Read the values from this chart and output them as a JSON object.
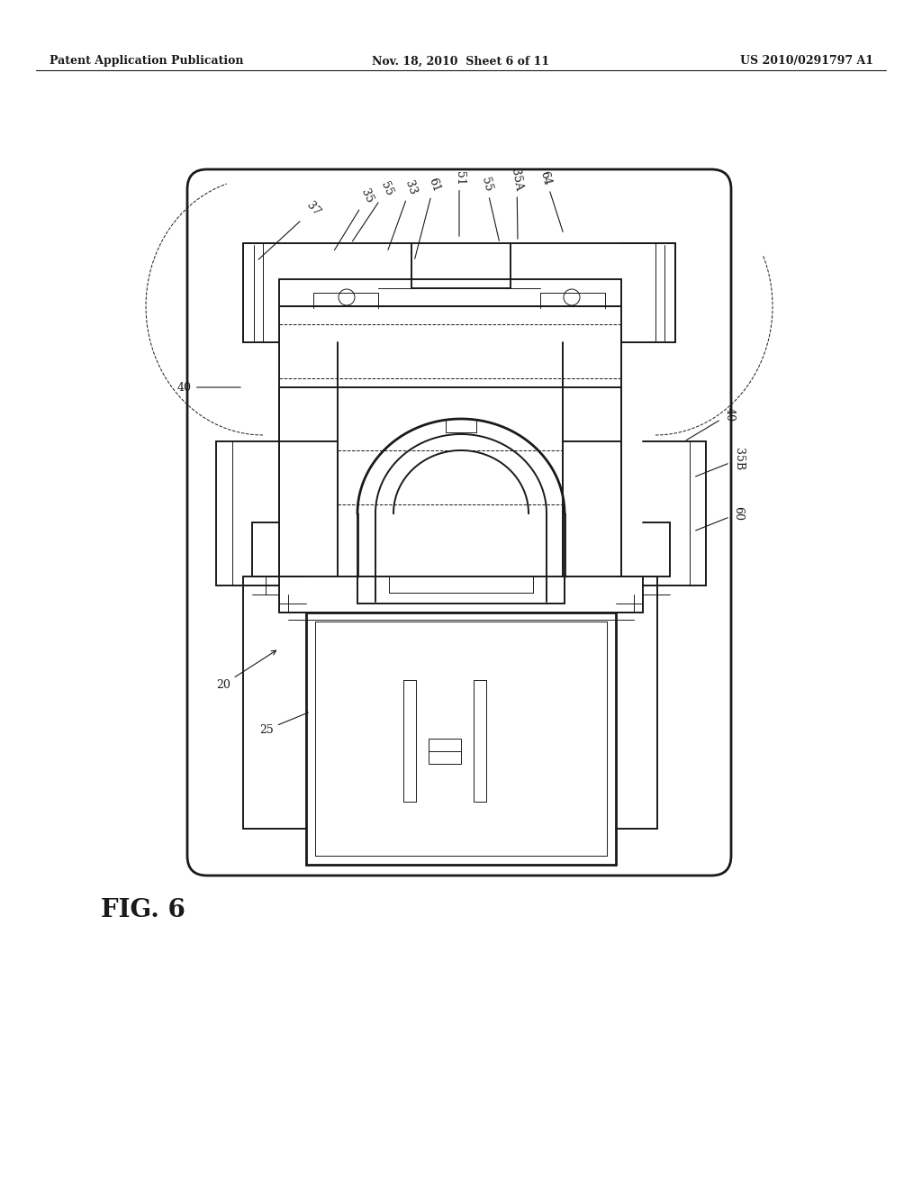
{
  "bg_color": "#ffffff",
  "header_left": "Patent Application Publication",
  "header_mid": "Nov. 18, 2010  Sheet 6 of 11",
  "header_right": "US 2010/0291797 A1",
  "fig_label": "FIG. 6",
  "dark": "#1a1a1a",
  "lw_main": 1.4,
  "lw_thin": 0.7,
  "lw_thick": 2.0
}
